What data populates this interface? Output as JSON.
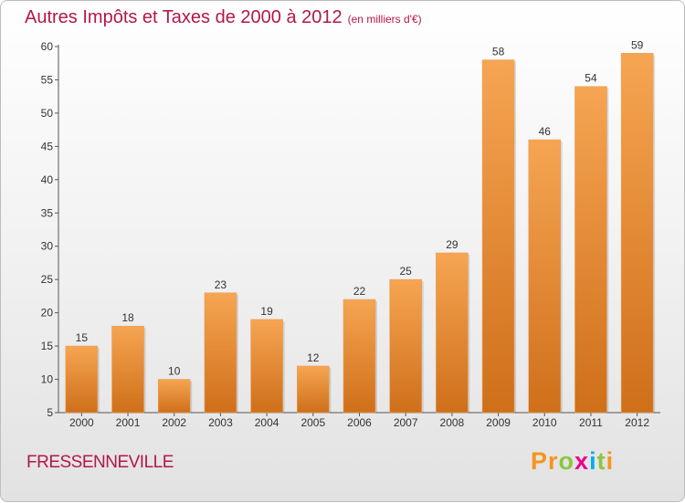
{
  "header": {
    "title": "Autres Impôts et Taxes de 2000 à 2012",
    "subtitle": "(en milliers d'€)"
  },
  "footer": {
    "commune": "FRESSENNEVILLE",
    "logo": [
      "P",
      "r",
      "o",
      "x",
      "i",
      "t",
      "i"
    ]
  },
  "colors": {
    "bar_top": "#f6a552",
    "bar_bottom": "#cf6f1a",
    "title": "#b3174a",
    "logo": [
      "#f7941d",
      "#f7941d",
      "#8cc63f",
      "#ec008c",
      "#00aeef",
      "#8cc63f",
      "#f7941d"
    ]
  },
  "chart_data": {
    "type": "bar",
    "title": "Autres Impôts et Taxes de 2000 à 2012",
    "subtitle": "(en milliers d'€)",
    "categories": [
      "2000",
      "2001",
      "2002",
      "2003",
      "2004",
      "2005",
      "2006",
      "2007",
      "2008",
      "2009",
      "2010",
      "2011",
      "2012"
    ],
    "values": [
      15,
      18,
      10,
      23,
      19,
      12,
      22,
      25,
      29,
      58,
      46,
      54,
      59
    ],
    "ylim": [
      5,
      60
    ],
    "yticks": [
      5,
      10,
      15,
      20,
      25,
      30,
      35,
      40,
      45,
      50,
      55,
      60
    ],
    "grid": false,
    "legend": "none"
  }
}
